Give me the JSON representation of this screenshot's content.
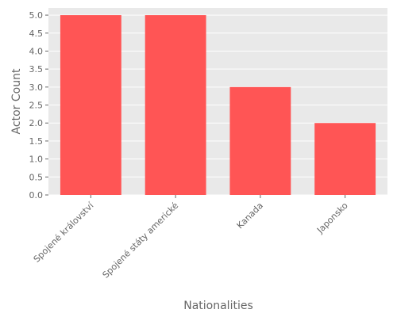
{
  "chart_data": {
    "type": "bar",
    "title": "",
    "xlabel": "Nationalities",
    "ylabel": "Actor Count",
    "categories": [
      "Spojené království",
      "Spojené státy americké",
      "Kanada",
      "Japonsko"
    ],
    "values": [
      5,
      5,
      3,
      2
    ],
    "ylim": [
      0,
      5.2
    ],
    "yticks": [
      "0.0",
      "0.5",
      "1.0",
      "1.5",
      "2.0",
      "2.5",
      "3.0",
      "3.5",
      "4.0",
      "4.5",
      "5.0"
    ],
    "grid": true,
    "legend": "none",
    "colors": {
      "bar": "#ff5555",
      "plot_background": "#e9e9e9",
      "grid": "#ffffff",
      "text": "#666666"
    }
  }
}
